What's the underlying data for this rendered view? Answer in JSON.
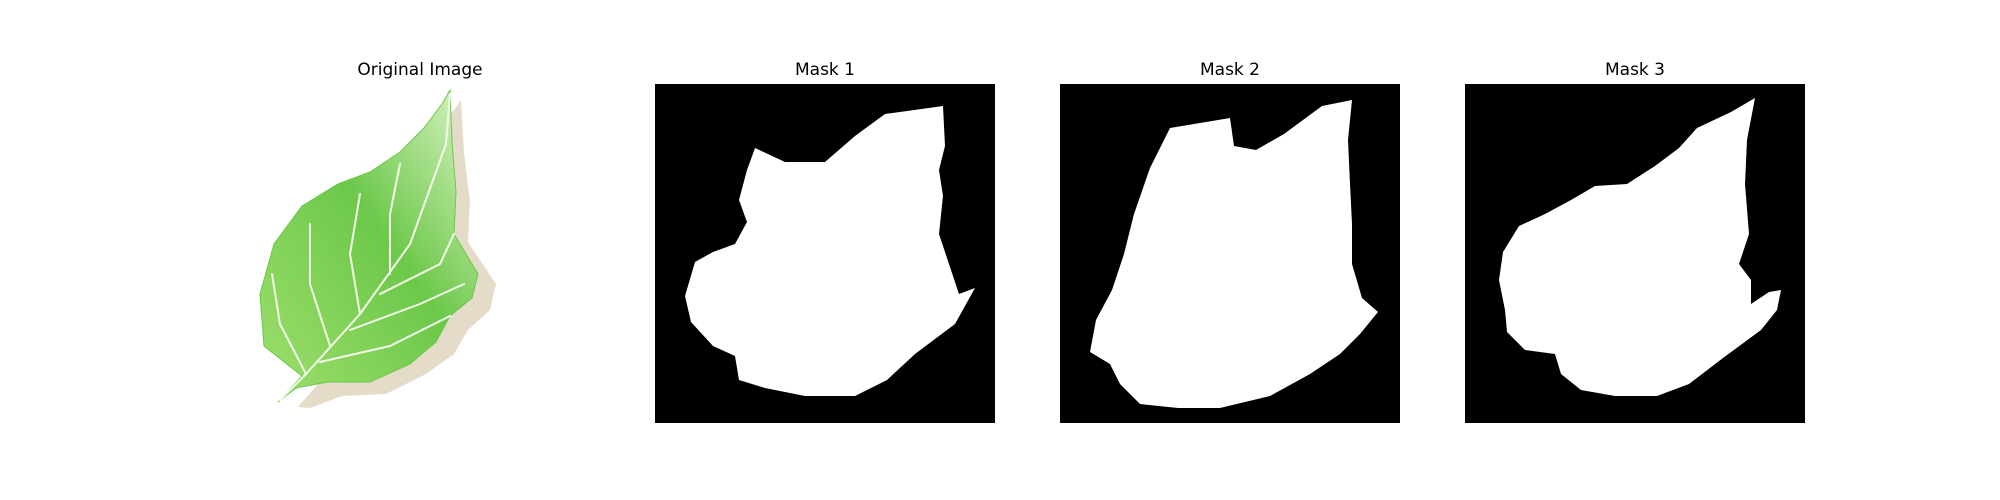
{
  "figure": {
    "panels": [
      {
        "title": "Original Image"
      },
      {
        "title": "Mask 1"
      },
      {
        "title": "Mask 2"
      },
      {
        "title": "Mask 3"
      }
    ]
  },
  "colors": {
    "background": "#ffffff",
    "mask_background": "#000000",
    "mask_foreground": "#ffffff",
    "leaf_light": "#dff5c9",
    "leaf_mid": "#9fe06e",
    "leaf_dark": "#6cc84a",
    "leaf_vein": "#f3fbe8",
    "leaf_shadow": "#e4dcc8"
  }
}
